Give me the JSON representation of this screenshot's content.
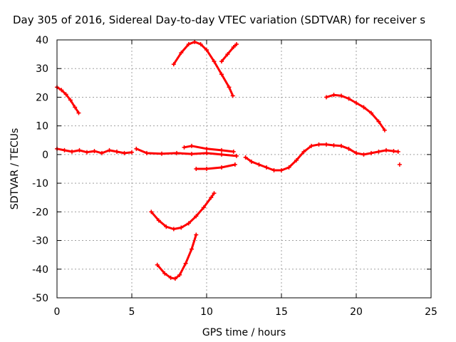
{
  "chart_data": {
    "type": "scatter",
    "title": "Day 305 of 2016, Sidereal Day-to-day VTEC variation (SDTVAR) for receiver s",
    "xlabel": "GPS time / hours",
    "ylabel": "SDTVAR / TECUs",
    "xlim": [
      0,
      25
    ],
    "ylim": [
      -50,
      40
    ],
    "x_ticks": [
      "0",
      "5",
      "10",
      "15",
      "20",
      "25"
    ],
    "y_ticks": [
      "40",
      "30",
      "20",
      "10",
      "0",
      "-10",
      "-20",
      "-30",
      "-40",
      "-50"
    ],
    "grid": true,
    "legend": "none",
    "color": "#ff0000",
    "series": [
      {
        "x": [
          0.0,
          0.3,
          0.6,
          0.9,
          1.2,
          1.45
        ],
        "y": [
          23.5,
          22.5,
          21.0,
          19.0,
          16.5,
          14.5
        ]
      },
      {
        "x": [
          0.0,
          0.5,
          1.0,
          1.5,
          2.0,
          2.5,
          3.0,
          3.5,
          4.0,
          4.5,
          5.0
        ],
        "y": [
          2.0,
          1.5,
          1.0,
          1.5,
          0.8,
          1.2,
          0.5,
          1.5,
          1.0,
          0.5,
          0.8
        ]
      },
      {
        "x": [
          5.3,
          6.0,
          7.0,
          8.0,
          9.0,
          10.0,
          11.0,
          12.0
        ],
        "y": [
          2.0,
          0.5,
          0.3,
          0.5,
          0.2,
          0.5,
          0.0,
          -0.5
        ]
      },
      {
        "x": [
          8.5,
          9.0,
          10.0,
          11.0,
          11.8
        ],
        "y": [
          2.5,
          3.0,
          2.0,
          1.5,
          1.0
        ]
      },
      {
        "x": [
          9.3,
          10.0,
          11.0,
          11.9
        ],
        "y": [
          -5.0,
          -5.0,
          -4.5,
          -3.5
        ]
      },
      {
        "x": [
          7.8,
          8.3,
          8.8,
          9.2,
          9.6,
          10.0,
          10.5,
          11.0,
          11.5,
          11.75
        ],
        "y": [
          31.5,
          35.5,
          38.5,
          39.3,
          38.5,
          36.5,
          32.5,
          28.0,
          23.5,
          20.5
        ]
      },
      {
        "x": [
          11.0,
          11.4,
          11.8,
          12.0
        ],
        "y": [
          32.5,
          35.0,
          37.5,
          38.5
        ]
      },
      {
        "x": [
          12.6,
          13.0,
          13.5,
          14.0,
          14.5,
          15.0,
          15.5,
          16.0,
          16.5,
          17.0,
          17.5,
          18.0,
          18.5,
          19.0,
          19.5,
          20.0,
          20.5,
          21.0,
          21.5,
          22.0,
          22.5,
          22.8
        ],
        "y": [
          -1.0,
          -2.5,
          -3.5,
          -4.5,
          -5.5,
          -5.5,
          -4.5,
          -2.0,
          1.0,
          3.0,
          3.5,
          3.5,
          3.2,
          3.0,
          2.0,
          0.5,
          0.0,
          0.5,
          1.0,
          1.5,
          1.2,
          1.0
        ]
      },
      {
        "x": [
          18.0,
          18.5,
          19.0,
          19.5,
          20.0,
          20.5,
          21.0,
          21.5,
          21.9
        ],
        "y": [
          20.0,
          20.8,
          20.5,
          19.5,
          18.0,
          16.5,
          14.5,
          11.5,
          8.5
        ]
      },
      {
        "x": [
          22.9
        ],
        "y": [
          -3.5
        ]
      },
      {
        "x": [
          6.3,
          6.8,
          7.3,
          7.8,
          8.3,
          8.8,
          9.3,
          9.8,
          10.3,
          10.5
        ],
        "y": [
          -20.0,
          -23.0,
          -25.2,
          -26.0,
          -25.5,
          -24.0,
          -21.5,
          -18.5,
          -15.0,
          -13.5
        ]
      },
      {
        "x": [
          6.7,
          7.2,
          7.6,
          7.9,
          8.2,
          8.6,
          9.0,
          9.3
        ],
        "y": [
          -38.5,
          -41.5,
          -43.0,
          -43.3,
          -42.0,
          -38.0,
          -33.0,
          -28.0
        ]
      }
    ]
  }
}
